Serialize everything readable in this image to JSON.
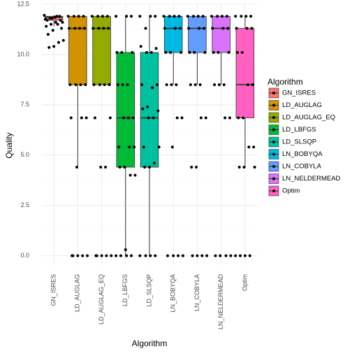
{
  "chart_data": {
    "type": "boxplot",
    "x_label": "Algorithm",
    "y_label": "Quality",
    "legend_title": "Algorithm",
    "categories": [
      "GN_ISRES",
      "LD_AUGLAG",
      "LD_AUGLAG_EQ",
      "LD_LBFGS",
      "LD_SLSQP",
      "LN_BOBYQA",
      "LN_COBYLA",
      "LN_NELDERMEAD",
      "Optim"
    ],
    "colors": [
      "#F8766D",
      "#D39200",
      "#93AA00",
      "#00BA38",
      "#00C19F",
      "#00B9E3",
      "#619CFF",
      "#DB72FB",
      "#FF61C3"
    ],
    "boxes": [
      {
        "low": 11.4,
        "q1": 11.7,
        "median": 11.85,
        "q3": 11.9,
        "high": 11.95
      },
      {
        "low": 4.4,
        "q1": 8.5,
        "median": 11.3,
        "q3": 11.9,
        "high": 11.95
      },
      {
        "low": 8.5,
        "q1": 8.5,
        "median": 11.3,
        "q3": 11.9,
        "high": 11.95
      },
      {
        "low": 0,
        "q1": 4.4,
        "median": 6.85,
        "q3": 10.1,
        "high": 11.95
      },
      {
        "low": 0,
        "q1": 4.4,
        "median": 6.85,
        "q3": 10.1,
        "high": 11.95
      },
      {
        "low": 8.5,
        "q1": 10.1,
        "median": 11.3,
        "q3": 11.9,
        "high": 11.95
      },
      {
        "low": 8.5,
        "q1": 10.1,
        "median": 11.3,
        "q3": 11.9,
        "high": 11.95
      },
      {
        "low": 8.5,
        "q1": 10.1,
        "median": 11.3,
        "q3": 11.9,
        "high": 11.95
      },
      {
        "low": 4.4,
        "q1": 6.85,
        "median": 8.5,
        "q3": 11.3,
        "high": 11.95
      }
    ],
    "points": [
      [
        11.95,
        11.9,
        11.85,
        11.8,
        11.75,
        11.7,
        11.6,
        11.5,
        11.4,
        11.3,
        11.9,
        11.8,
        11.7,
        11.6,
        11.5,
        11.2,
        11.0,
        10.7,
        10.6,
        10.4,
        10.35
      ],
      [
        11.9,
        11.9,
        11.9,
        11.9,
        11.3,
        11.3,
        11.3,
        11.3,
        8.5,
        8.5,
        8.5,
        8.5,
        6.85,
        6.85,
        6.85,
        4.4,
        0,
        0,
        0,
        0,
        0
      ],
      [
        11.9,
        11.9,
        11.9,
        11.9,
        11.3,
        11.3,
        11.3,
        11.3,
        8.5,
        8.5,
        8.5,
        8.5,
        6.85,
        6.85,
        4.4,
        4.4,
        0,
        0,
        0,
        0,
        0
      ],
      [
        11.9,
        11.9,
        11.9,
        10.1,
        10.1,
        10.1,
        8.5,
        8.5,
        8.5,
        6.85,
        6.85,
        6.85,
        5.4,
        5.4,
        5.4,
        4.4,
        4.4,
        4.0,
        4.0,
        0.3,
        0,
        0,
        0,
        0
      ],
      [
        11.9,
        11.9,
        11.9,
        11.3,
        10.4,
        10.3,
        10.1,
        10.1,
        8.5,
        8.5,
        8.35,
        7.4,
        7.3,
        7.2,
        6.85,
        6.85,
        5.4,
        5.4,
        4.6,
        4.4,
        4.4,
        0,
        0,
        0,
        0
      ],
      [
        11.9,
        11.9,
        11.9,
        11.9,
        11.3,
        11.3,
        11.3,
        10.1,
        10.1,
        10.1,
        8.5,
        8.5,
        8.5,
        6.85,
        6.85,
        5.4,
        0,
        0,
        0,
        0
      ],
      [
        11.9,
        11.9,
        11.9,
        11.9,
        11.3,
        11.3,
        11.3,
        10.1,
        10.1,
        10.1,
        8.5,
        8.5,
        8.5,
        6.85,
        6.85,
        4.4,
        4.4,
        0,
        0,
        0,
        0
      ],
      [
        11.9,
        11.9,
        11.9,
        11.9,
        11.3,
        11.3,
        11.3,
        10.1,
        10.1,
        10.1,
        8.5,
        8.5,
        8.5,
        6.85,
        6.85,
        0,
        0,
        0,
        0
      ],
      [
        11.9,
        11.9,
        11.9,
        11.9,
        11.3,
        11.3,
        11.3,
        10.1,
        10.1,
        8.5,
        8.5,
        6.85,
        6.85,
        5.4,
        5.4,
        4.4,
        4.4,
        4.4,
        0,
        0,
        0,
        0
      ]
    ],
    "ylim": [
      -0.5,
      12.5
    ],
    "yticks": [
      {
        "value": 0,
        "label": "0.0"
      },
      {
        "value": 2.5,
        "label": "2.5"
      },
      {
        "value": 5,
        "label": "5.0"
      },
      {
        "value": 7.5,
        "label": "7.5"
      },
      {
        "value": 10,
        "label": "10.0"
      },
      {
        "value": 12.5,
        "label": "12.5"
      }
    ],
    "grid": true
  }
}
